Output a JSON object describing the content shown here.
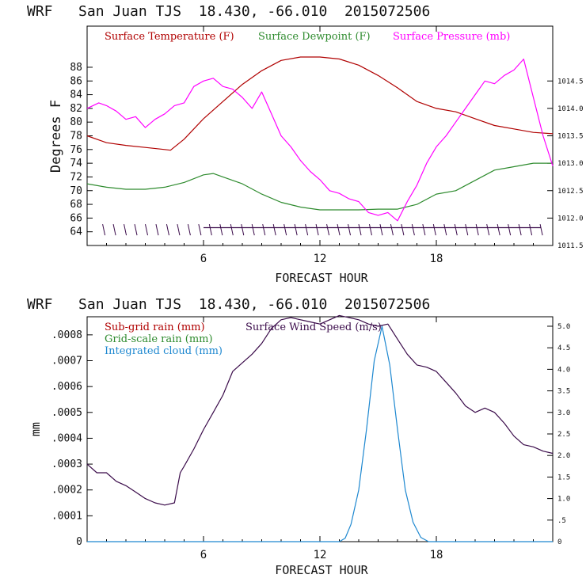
{
  "chart_data": [
    {
      "type": "line",
      "title": "WRF   San Juan TJS  18.430, -66.010  2015072506",
      "xlabel": "FORECAST HOUR",
      "ylabel": "Degrees F",
      "xlim": [
        0,
        24
      ],
      "xticks": [
        "6",
        "12",
        "18"
      ],
      "ylim": [
        62,
        94
      ],
      "yticks": [
        "64",
        "66",
        "68",
        "70",
        "72",
        "74",
        "76",
        "78",
        "80",
        "82",
        "84",
        "86",
        "88"
      ],
      "y2lim": [
        1011.5,
        1015.5
      ],
      "y2ticks": [
        "1011.5",
        "1012.0",
        "1012.5",
        "1013.0",
        "1013.5",
        "1014.0",
        "1014.5"
      ],
      "wind_barbs": "present along bottom of plot (y ≈ 64)",
      "series": [
        {
          "name": "Surface Temperature (F)",
          "color": "#b00000",
          "axis": "left",
          "x": [
            0,
            1,
            2,
            3,
            4,
            4.3,
            5,
            6,
            7,
            8,
            9,
            10,
            11,
            12,
            13,
            14,
            15,
            16,
            17,
            18,
            19,
            20,
            21,
            22,
            23,
            24
          ],
          "y": [
            78,
            77,
            76.6,
            76.3,
            76,
            75.9,
            77.5,
            80.5,
            83,
            85.5,
            87.5,
            89,
            89.5,
            89.5,
            89.2,
            88.3,
            86.8,
            85,
            83,
            82,
            81.5,
            80.5,
            79.5,
            79,
            78.5,
            78.3
          ]
        },
        {
          "name": "Surface Dewpoint (F)",
          "color": "#2e8b2e",
          "axis": "left",
          "x": [
            0,
            1,
            2,
            3,
            4,
            5,
            6,
            6.5,
            7,
            8,
            9,
            10,
            11,
            12,
            13,
            14,
            15,
            16,
            17,
            18,
            19,
            20,
            21,
            22,
            23,
            24
          ],
          "y": [
            71,
            70.5,
            70.2,
            70.2,
            70.5,
            71.2,
            72.3,
            72.5,
            72,
            71,
            69.5,
            68.3,
            67.6,
            67.2,
            67.2,
            67.2,
            67.3,
            67.3,
            68,
            69.5,
            70,
            71.5,
            73,
            73.5,
            74,
            74
          ]
        },
        {
          "name": "Surface Pressure (mb)",
          "color": "#ff00ff",
          "axis": "right",
          "x": [
            0,
            0.6,
            1,
            1.5,
            2,
            2.5,
            3,
            3.5,
            4,
            4.5,
            5,
            5.5,
            6,
            6.5,
            7,
            7.5,
            8,
            8.5,
            9,
            9.5,
            10,
            10.5,
            11,
            11.5,
            12,
            12.5,
            13,
            13.5,
            14,
            14.5,
            15,
            15.5,
            16,
            16.5,
            17,
            17.5,
            18,
            18.5,
            19,
            19.5,
            20,
            20.5,
            21,
            21.5,
            22,
            22.5,
            23,
            23.5,
            24
          ],
          "y": [
            1014.0,
            1014.1,
            1014.05,
            1013.95,
            1013.8,
            1013.85,
            1013.65,
            1013.8,
            1013.9,
            1014.05,
            1014.1,
            1014.4,
            1014.5,
            1014.55,
            1014.4,
            1014.35,
            1014.2,
            1014.0,
            1014.3,
            1013.9,
            1013.5,
            1013.3,
            1013.05,
            1012.85,
            1012.7,
            1012.5,
            1012.45,
            1012.35,
            1012.3,
            1012.1,
            1012.05,
            1012.1,
            1011.95,
            1012.3,
            1012.6,
            1013.0,
            1013.3,
            1013.5,
            1013.75,
            1014.0,
            1014.25,
            1014.5,
            1014.45,
            1014.6,
            1014.7,
            1014.9,
            1014.2,
            1013.5,
            1012.95
          ]
        }
      ]
    },
    {
      "type": "line",
      "title": "WRF   San Juan TJS  18.430, -66.010  2015072506",
      "xlabel": "FORECAST HOUR",
      "ylabel": "mm",
      "xlim": [
        0,
        24
      ],
      "xticks": [
        "6",
        "12",
        "18"
      ],
      "ylim": [
        0,
        0.00087
      ],
      "yticks": [
        "0",
        ".0001",
        ".0002",
        ".0003",
        ".0004",
        ".0005",
        ".0006",
        ".0007",
        ".0008"
      ],
      "y2lim": [
        0,
        5.22
      ],
      "y2ticks": [
        "0",
        ".5",
        "1.0",
        "1.5",
        "2.0",
        "2.5",
        "3.0",
        "3.5",
        "4.0",
        "4.5",
        "5.0"
      ],
      "series": [
        {
          "name": "Sub-grid rain (mm)",
          "color": "#b00000",
          "axis": "left",
          "x": [],
          "y": []
        },
        {
          "name": "Grid-scale rain (mm)",
          "color": "#2e8b2e",
          "axis": "left",
          "x": [],
          "y": []
        },
        {
          "name": "Integrated cloud (mm)",
          "color": "#1e88d0",
          "axis": "right",
          "x": [
            0,
            13,
            13.3,
            13.6,
            14,
            14.4,
            14.8,
            15.2,
            15.6,
            16,
            16.4,
            16.8,
            17.2,
            17.6,
            18,
            24
          ],
          "y": [
            0,
            0,
            0.08,
            0.4,
            1.2,
            2.6,
            4.2,
            5.0,
            4.1,
            2.6,
            1.2,
            0.45,
            0.1,
            0,
            0,
            0
          ]
        },
        {
          "name": "Surface Wind Speed (m/s)",
          "color": "#3a0b4a",
          "axis": "right",
          "x": [
            0,
            0.5,
            1,
            1.5,
            2,
            2.5,
            3,
            3.5,
            4,
            4.5,
            4.8,
            5,
            5.5,
            6,
            6.5,
            7,
            7.5,
            8,
            8.5,
            9,
            9.5,
            10,
            10.5,
            11,
            11.5,
            12,
            12.5,
            13,
            13.5,
            14,
            14.5,
            15,
            15.5,
            16,
            16.5,
            17,
            17.5,
            18,
            18.5,
            19,
            19.5,
            20,
            20.5,
            21,
            21.5,
            22,
            22.5,
            23,
            23.5,
            24
          ],
          "y": [
            1.8,
            1.6,
            1.6,
            1.4,
            1.3,
            1.15,
            1.0,
            0.9,
            0.85,
            0.9,
            1.6,
            1.75,
            2.15,
            2.6,
            3.0,
            3.4,
            3.95,
            4.15,
            4.35,
            4.6,
            4.95,
            5.15,
            5.2,
            5.15,
            5.1,
            5.05,
            5.15,
            5.25,
            5.2,
            5.15,
            5.05,
            5.0,
            5.05,
            4.7,
            4.35,
            4.1,
            4.05,
            3.95,
            3.7,
            3.45,
            3.15,
            3.0,
            3.1,
            3.0,
            2.75,
            2.45,
            2.25,
            2.2,
            2.1,
            2.05
          ]
        }
      ]
    }
  ]
}
